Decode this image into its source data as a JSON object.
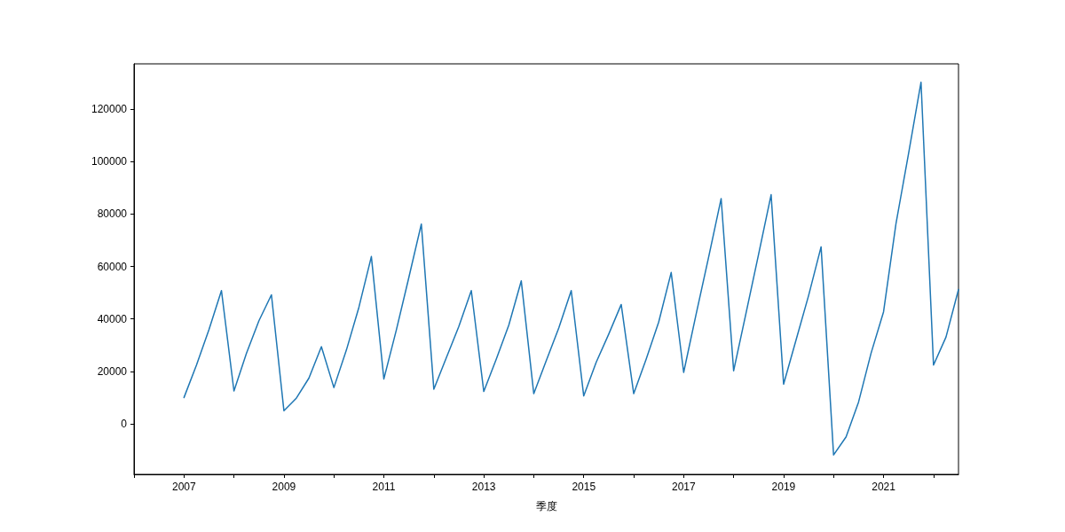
{
  "chart_data": {
    "type": "line",
    "xlabel": "季度",
    "x": [
      2007,
      2007.25,
      2007.5,
      2007.75,
      2008,
      2008.25,
      2008.5,
      2008.75,
      2009,
      2009.25,
      2009.5,
      2009.75,
      2010,
      2010.25,
      2010.5,
      2010.75,
      2011,
      2011.25,
      2011.5,
      2011.75,
      2012,
      2012.25,
      2012.5,
      2012.75,
      2013,
      2013.25,
      2013.5,
      2013.75,
      2014,
      2014.25,
      2014.5,
      2014.75,
      2015,
      2015.25,
      2015.5,
      2015.75,
      2016,
      2016.25,
      2016.5,
      2016.75,
      2017,
      2017.25,
      2017.5,
      2017.75,
      2018,
      2018.25,
      2018.5,
      2018.75,
      2019,
      2019.25,
      2019.5,
      2019.75,
      2020,
      2020.25,
      2020.5,
      2020.75,
      2021,
      2021.25,
      2021.5,
      2021.75,
      2022,
      2022.25,
      2022.5
    ],
    "series": [
      {
        "color": "#1f77b4",
        "values": [
          10000,
          22400,
          35900,
          50800,
          12500,
          26900,
          39300,
          49200,
          5000,
          9800,
          17400,
          29400,
          13800,
          28100,
          44400,
          63800,
          17100,
          35800,
          55800,
          76200,
          13200,
          25200,
          37100,
          50800,
          12300,
          24700,
          37600,
          54500,
          11500,
          24100,
          36500,
          50800,
          10600,
          23500,
          34200,
          45500,
          11500,
          24700,
          38800,
          57700,
          19600,
          41900,
          63600,
          85900,
          20200,
          42400,
          64700,
          87400,
          15100,
          32000,
          48900,
          67500,
          -11900,
          -5000,
          8300,
          26900,
          42700,
          76500,
          103000,
          130300,
          22400,
          33100,
          51200
        ]
      }
    ],
    "xlim": [
      2006,
      2022.5
    ],
    "xticks": [
      {
        "value": 2006,
        "label": null
      },
      2007,
      {
        "value": 2008,
        "label": null
      },
      2009,
      {
        "value": 2010,
        "label": null
      },
      2011,
      {
        "value": 2012,
        "label": null
      },
      2013,
      {
        "value": 2014,
        "label": null
      },
      2015,
      {
        "value": 2016,
        "label": null
      },
      2017,
      {
        "value": 2018,
        "label": null
      },
      2019,
      {
        "value": 2020,
        "label": null
      },
      2021,
      {
        "value": 2022,
        "label": null
      }
    ],
    "ylim": [
      -19300,
      137300
    ],
    "yticks": [
      0,
      20000,
      40000,
      60000,
      80000,
      100000,
      120000
    ],
    "grid": false,
    "marker": "none",
    "line_style": "solid"
  }
}
